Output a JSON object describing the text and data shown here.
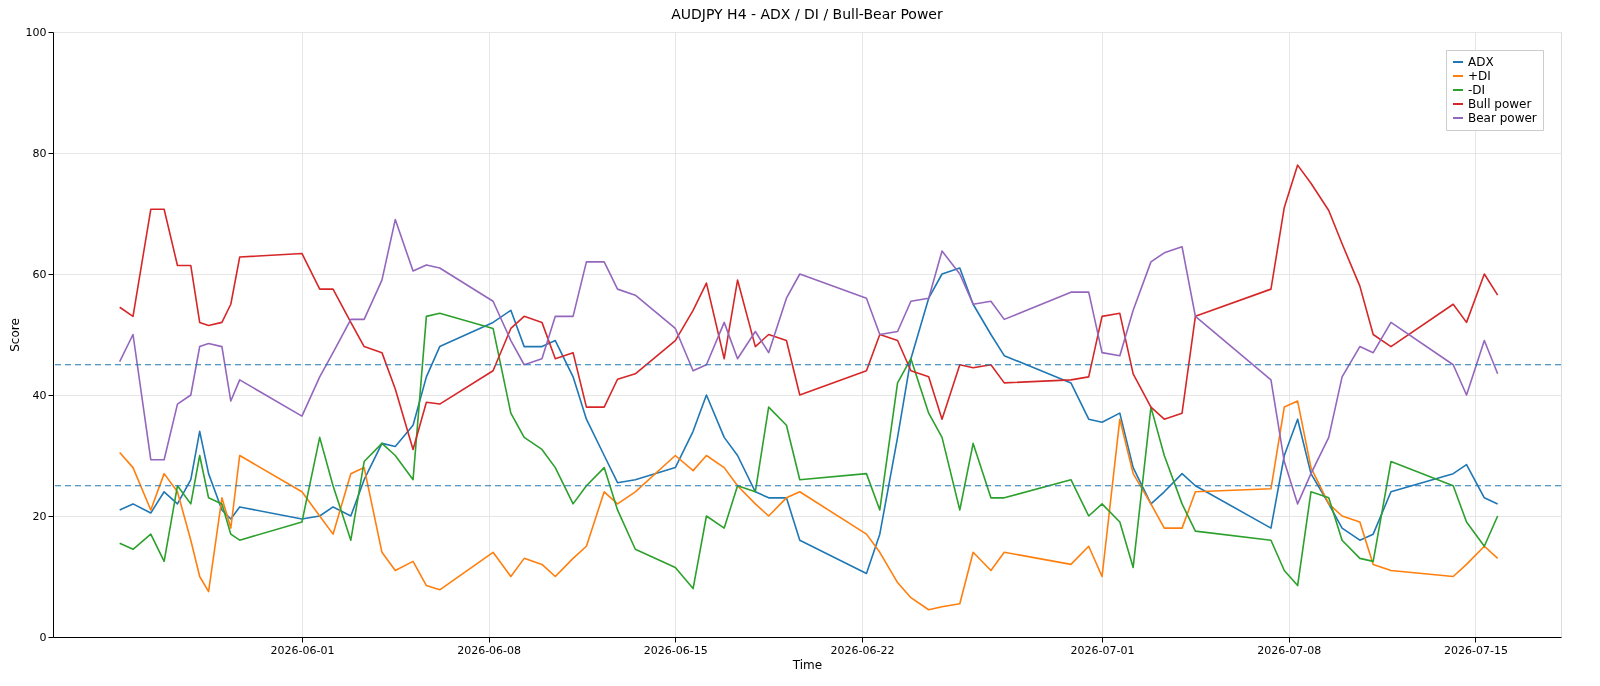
{
  "chart_data": {
    "type": "line",
    "title": "AUDJPY H4 - ADX / DI / Bull-Bear Power",
    "xlabel": "Time",
    "ylabel": "Score",
    "x": [
      "2026-05-25T04:00",
      "2026-05-25T16:00",
      "2026-05-26T08:00",
      "2026-05-26T20:00",
      "2026-05-27T08:00",
      "2026-05-27T20:00",
      "2026-05-28T04:00",
      "2026-05-28T12:00",
      "2026-05-29T00:00",
      "2026-05-29T08:00",
      "2026-05-29T16:00",
      "2026-06-01T00:00",
      "2026-06-01T16:00",
      "2026-06-02T04:00",
      "2026-06-02T20:00",
      "2026-06-03T08:00",
      "2026-06-04T00:00",
      "2026-06-04T12:00",
      "2026-06-05T04:00",
      "2026-06-05T16:00",
      "2026-06-06T04:00",
      "2026-06-08T04:00",
      "2026-06-08T20:00",
      "2026-06-09T08:00",
      "2026-06-10T00:00",
      "2026-06-10T12:00",
      "2026-06-11T04:00",
      "2026-06-11T16:00",
      "2026-06-12T08:00",
      "2026-06-12T20:00",
      "2026-06-13T12:00",
      "2026-06-15T00:00",
      "2026-06-15T16:00",
      "2026-06-16T04:00",
      "2026-06-16T20:00",
      "2026-06-17T08:00",
      "2026-06-18T00:00",
      "2026-06-18T12:00",
      "2026-06-19T04:00",
      "2026-06-19T16:00",
      "2026-06-22T04:00",
      "2026-06-22T16:00",
      "2026-06-23T08:00",
      "2026-06-23T20:00",
      "2026-06-24T12:00",
      "2026-06-25T00:00",
      "2026-06-25T16:00",
      "2026-06-26T04:00",
      "2026-06-26T20:00",
      "2026-06-27T08:00",
      "2026-06-29T20:00",
      "2026-06-30T12:00",
      "2026-07-01T00:00",
      "2026-07-01T16:00",
      "2026-07-02T04:00",
      "2026-07-02T20:00",
      "2026-07-03T08:00",
      "2026-07-04T00:00",
      "2026-07-04T12:00",
      "2026-07-07T08:00",
      "2026-07-07T20:00",
      "2026-07-08T08:00",
      "2026-07-08T20:00",
      "2026-07-09T12:00",
      "2026-07-10T00:00",
      "2026-07-10T16:00",
      "2026-07-11T04:00",
      "2026-07-11T20:00",
      "2026-07-14T04:00",
      "2026-07-14T16:00",
      "2026-07-15T08:00",
      "2026-07-15T20:00"
    ],
    "xlim": [
      "2026-05-22T16:00",
      "2026-07-18T05:00"
    ],
    "xticks": [
      {
        "value": "2026-06-01",
        "label": "2026-06-01"
      },
      {
        "value": "2026-06-08",
        "label": "2026-06-08"
      },
      {
        "value": "2026-06-15",
        "label": "2026-06-15"
      },
      {
        "value": "2026-06-22",
        "label": "2026-06-22"
      },
      {
        "value": "2026-07-01",
        "label": "2026-07-01"
      },
      {
        "value": "2026-07-08",
        "label": "2026-07-08"
      },
      {
        "value": "2026-07-15",
        "label": "2026-07-15"
      }
    ],
    "ylim": [
      0,
      100
    ],
    "yticks": [
      0,
      20,
      40,
      60,
      80,
      100
    ],
    "grid": true,
    "legend": "top right",
    "marker": "none",
    "line_style": "solid",
    "series": [
      {
        "name": "ADX",
        "color": "#1f77b4",
        "values": [
          21,
          22,
          20.5,
          24,
          22,
          26,
          34,
          27,
          21,
          19.5,
          21.5,
          19.5,
          20,
          21.5,
          20,
          26,
          32,
          31.5,
          35,
          43,
          48,
          52,
          54,
          48,
          48,
          49,
          43,
          36,
          30,
          25.5,
          26,
          28,
          34,
          40,
          33,
          30,
          24,
          23,
          23,
          16,
          10.5,
          17,
          33,
          46,
          56,
          60,
          61,
          55,
          50,
          46.5,
          42,
          36,
          35.5,
          37,
          28,
          22,
          24,
          27,
          25,
          18,
          30,
          36,
          27,
          22,
          18,
          16,
          17,
          24,
          27,
          28.5,
          23,
          22
        ]
      },
      {
        "name": "+DI",
        "color": "#ff7f0e",
        "values": [
          30.5,
          28,
          21,
          27,
          24,
          16,
          10,
          7.5,
          23,
          18,
          30,
          24,
          20,
          17,
          27,
          28,
          14,
          11,
          12.5,
          8.5,
          7.8,
          14,
          10,
          13,
          12,
          10,
          13,
          15,
          24,
          22,
          24,
          30,
          27.5,
          30,
          28,
          25,
          22,
          20,
          23,
          24,
          17,
          14,
          9,
          6.5,
          4.5,
          5,
          5.5,
          14,
          11,
          14,
          12,
          15,
          10,
          36,
          27,
          22,
          18,
          18,
          24,
          24.5,
          38,
          39,
          28,
          22,
          20,
          19,
          12,
          11,
          10,
          12,
          15,
          13
        ]
      },
      {
        "name": "-DI",
        "color": "#2ca02c",
        "values": [
          15.5,
          14.5,
          17,
          12.5,
          25,
          22,
          30,
          23,
          22,
          17,
          16,
          19,
          33,
          25,
          16,
          29,
          32,
          30,
          26,
          53,
          53.5,
          51,
          37,
          33,
          31,
          28,
          22,
          25,
          28,
          21,
          14.5,
          11.5,
          8,
          20,
          18,
          25,
          24,
          38,
          35,
          26,
          27,
          21,
          42,
          46,
          37,
          33,
          21,
          32,
          23,
          23,
          26,
          20,
          22,
          19,
          11.5,
          38,
          30,
          22,
          17.5,
          16,
          11,
          8.5,
          24,
          23,
          16,
          13,
          12.5,
          29,
          25,
          19,
          15,
          20
        ]
      },
      {
        "name": "Bull power",
        "color": "#d62728",
        "values": [
          54.5,
          53,
          70.7,
          70.7,
          61.4,
          61.4,
          52,
          51.5,
          52,
          55,
          62.8,
          63.4,
          57.5,
          57.5,
          52,
          48,
          47,
          41,
          31,
          38.8,
          38.5,
          44,
          51,
          53,
          52,
          46,
          47,
          38,
          38,
          42.6,
          43.5,
          49,
          54,
          58.5,
          46,
          59,
          48,
          50,
          49,
          40,
          44,
          50,
          49,
          44,
          43,
          36,
          45,
          44.5,
          45,
          42,
          42.5,
          43,
          53,
          53.5,
          43.5,
          38,
          36,
          37,
          53,
          57.5,
          71,
          78,
          75,
          70.5,
          65,
          58,
          50,
          48,
          55,
          52,
          60,
          56.5
        ]
      },
      {
        "name": "Bear power",
        "color": "#9467bd",
        "values": [
          45.5,
          50,
          29.3,
          29.3,
          38.5,
          40,
          48,
          48.5,
          48,
          39,
          42.5,
          36.5,
          43,
          47,
          52.5,
          52.5,
          59,
          69,
          60.5,
          61.5,
          61,
          55.5,
          49,
          45,
          46,
          53,
          53,
          62,
          62,
          57.5,
          56.5,
          51,
          44,
          45,
          52,
          46,
          50.5,
          47,
          56,
          60,
          56,
          50,
          50.5,
          55.5,
          56,
          63.8,
          60,
          55,
          55.5,
          52.5,
          57,
          57,
          47,
          46.5,
          54,
          62,
          63.5,
          64.5,
          53,
          42.5,
          29,
          22,
          27,
          33,
          43,
          48,
          47,
          52,
          45,
          40,
          49,
          43.5
        ]
      }
    ],
    "ref_lines": [
      {
        "axis": "y",
        "value": 45,
        "color": "#1f77b4",
        "line_style": "dashed"
      },
      {
        "axis": "y",
        "value": 25,
        "color": "#1f77b4",
        "line_style": "dashed"
      }
    ]
  }
}
